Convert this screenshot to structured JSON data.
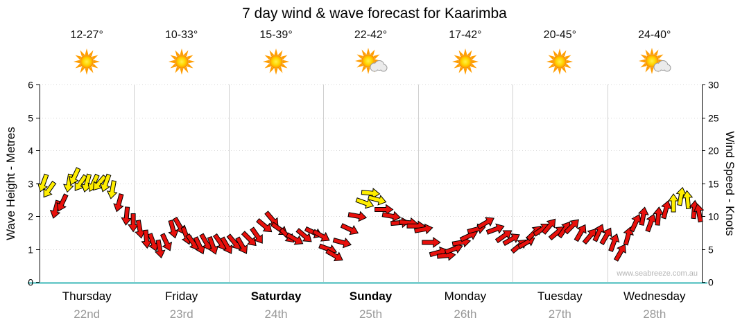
{
  "title": "7 day wind & wave forecast for Kaarimba",
  "watermark": "www.seabreeze.com.au",
  "axes": {
    "left_label": "Wave Height - Metres",
    "right_label": "Wind Speed - Knots",
    "left_ticks": [
      0,
      1,
      2,
      3,
      4,
      5,
      6
    ],
    "right_ticks": [
      0,
      5,
      10,
      15,
      20,
      25,
      30
    ],
    "left_range": [
      0,
      6
    ],
    "right_range": [
      0,
      30
    ]
  },
  "days": [
    {
      "name": "Thursday",
      "date": "22nd",
      "temp": "12-27°",
      "icon": "sun",
      "bold": false
    },
    {
      "name": "Friday",
      "date": "23rd",
      "temp": "10-33°",
      "icon": "sun",
      "bold": false
    },
    {
      "name": "Saturday",
      "date": "24th",
      "temp": "15-39°",
      "icon": "sun",
      "bold": true
    },
    {
      "name": "Sunday",
      "date": "25th",
      "temp": "22-42°",
      "icon": "sun-cloud",
      "bold": true
    },
    {
      "name": "Monday",
      "date": "26th",
      "temp": "17-42°",
      "icon": "sun",
      "bold": false
    },
    {
      "name": "Tuesday",
      "date": "27th",
      "temp": "20-45°",
      "icon": "sun",
      "bold": false
    },
    {
      "name": "Wednesday",
      "date": "28th",
      "temp": "24-40°",
      "icon": "sun-cloud",
      "bold": false
    }
  ],
  "chart_data": {
    "type": "scatter",
    "marker": "wind-arrow",
    "title": "7 day wind & wave forecast for Kaarimba",
    "xlabel": "",
    "ylabel_left": "Wave Height - Metres",
    "ylabel_right": "Wind Speed - Knots",
    "x_unit": "days",
    "x_range": [
      0,
      7
    ],
    "x_tick_labels": [
      "Thursday",
      "Friday",
      "Saturday",
      "Sunday",
      "Monday",
      "Tuesday",
      "Wednesday"
    ],
    "y_axis": "knots",
    "y_range": [
      0,
      30
    ],
    "grid": true,
    "colors": {
      "strong": "#ffee00",
      "light": "#e8100c",
      "x_axis_line": "#35b6b6"
    },
    "color_legend": {
      "y": "yellow arrow (moderate, ~12+ kt)",
      "r": "red arrow (light, <12 kt)"
    },
    "point_format": [
      "day_offset",
      "knots",
      "direction_deg",
      "color"
    ],
    "points": [
      [
        0.04,
        15,
        200,
        "y"
      ],
      [
        0.1,
        14,
        215,
        "y"
      ],
      [
        0.17,
        11,
        195,
        "r"
      ],
      [
        0.24,
        12,
        205,
        "r"
      ],
      [
        0.31,
        15,
        190,
        "y"
      ],
      [
        0.37,
        16,
        205,
        "y"
      ],
      [
        0.43,
        15,
        215,
        "y"
      ],
      [
        0.5,
        15,
        195,
        "y"
      ],
      [
        0.57,
        15,
        205,
        "y"
      ],
      [
        0.63,
        15,
        220,
        "y"
      ],
      [
        0.7,
        15,
        200,
        "y"
      ],
      [
        0.77,
        14,
        190,
        "y"
      ],
      [
        0.84,
        12,
        195,
        "r"
      ],
      [
        0.92,
        10,
        185,
        "r"
      ],
      [
        0.99,
        9,
        180,
        "r"
      ],
      [
        1.06,
        8,
        170,
        "r"
      ],
      [
        1.13,
        6.5,
        175,
        "r"
      ],
      [
        1.2,
        6,
        160,
        "r"
      ],
      [
        1.27,
        5,
        170,
        "r"
      ],
      [
        1.34,
        6,
        155,
        "r"
      ],
      [
        1.41,
        8,
        165,
        "r"
      ],
      [
        1.48,
        8.5,
        150,
        "r"
      ],
      [
        1.55,
        7,
        160,
        "r"
      ],
      [
        1.62,
        6,
        145,
        "r"
      ],
      [
        1.69,
        5.5,
        155,
        "r"
      ],
      [
        1.76,
        6,
        150,
        "r"
      ],
      [
        1.83,
        5.5,
        160,
        "r"
      ],
      [
        1.91,
        6,
        145,
        "r"
      ],
      [
        1.98,
        5.5,
        150,
        "r"
      ],
      [
        2.06,
        6,
        140,
        "r"
      ],
      [
        2.14,
        5.5,
        150,
        "r"
      ],
      [
        2.22,
        6.5,
        135,
        "r"
      ],
      [
        2.3,
        7,
        145,
        "r"
      ],
      [
        2.38,
        8.5,
        130,
        "r"
      ],
      [
        2.46,
        9.5,
        140,
        "r"
      ],
      [
        2.54,
        8,
        125,
        "r"
      ],
      [
        2.62,
        7,
        135,
        "r"
      ],
      [
        2.7,
        6.5,
        120,
        "r"
      ],
      [
        2.8,
        7,
        130,
        "r"
      ],
      [
        2.9,
        7.5,
        115,
        "r"
      ],
      [
        2.98,
        7,
        120,
        "r"
      ],
      [
        3.05,
        5,
        110,
        "r"
      ],
      [
        3.12,
        4,
        120,
        "r"
      ],
      [
        3.2,
        6,
        105,
        "r"
      ],
      [
        3.28,
        8,
        115,
        "r"
      ],
      [
        3.36,
        10,
        100,
        "r"
      ],
      [
        3.44,
        12,
        110,
        "y"
      ],
      [
        3.5,
        13.5,
        95,
        "y"
      ],
      [
        3.57,
        12.5,
        105,
        "y"
      ],
      [
        3.64,
        11,
        90,
        "r"
      ],
      [
        3.72,
        10,
        100,
        "r"
      ],
      [
        3.81,
        9,
        85,
        "r"
      ],
      [
        3.9,
        9,
        95,
        "r"
      ],
      [
        3.98,
        8.5,
        90,
        "r"
      ],
      [
        4.06,
        8,
        80,
        "r"
      ],
      [
        4.14,
        6,
        90,
        "r"
      ],
      [
        4.22,
        4.5,
        75,
        "r"
      ],
      [
        4.3,
        4,
        85,
        "r"
      ],
      [
        4.38,
        5,
        70,
        "r"
      ],
      [
        4.46,
        6,
        80,
        "r"
      ],
      [
        4.54,
        7,
        65,
        "r"
      ],
      [
        4.62,
        8,
        75,
        "r"
      ],
      [
        4.72,
        9,
        60,
        "r"
      ],
      [
        4.82,
        8,
        70,
        "r"
      ],
      [
        4.91,
        7,
        55,
        "r"
      ],
      [
        4.99,
        6.5,
        60,
        "r"
      ],
      [
        5.07,
        5.5,
        50,
        "r"
      ],
      [
        5.15,
        6,
        60,
        "r"
      ],
      [
        5.23,
        7.5,
        45,
        "r"
      ],
      [
        5.31,
        8,
        55,
        "r"
      ],
      [
        5.39,
        8.5,
        40,
        "r"
      ],
      [
        5.47,
        7.5,
        50,
        "r"
      ],
      [
        5.55,
        8,
        35,
        "r"
      ],
      [
        5.63,
        8.5,
        45,
        "r"
      ],
      [
        5.72,
        7.5,
        30,
        "r"
      ],
      [
        5.82,
        7,
        40,
        "r"
      ],
      [
        5.91,
        7.5,
        25,
        "r"
      ],
      [
        5.99,
        7,
        30,
        "r"
      ],
      [
        6.07,
        6,
        20,
        "r"
      ],
      [
        6.14,
        4.5,
        30,
        "r"
      ],
      [
        6.22,
        7,
        15,
        "r"
      ],
      [
        6.3,
        9,
        25,
        "r"
      ],
      [
        6.38,
        10,
        10,
        "r"
      ],
      [
        6.46,
        9,
        20,
        "r"
      ],
      [
        6.54,
        10,
        5,
        "r"
      ],
      [
        6.62,
        11,
        15,
        "r"
      ],
      [
        6.7,
        12,
        0,
        "y"
      ],
      [
        6.78,
        13,
        10,
        "y"
      ],
      [
        6.85,
        12.5,
        355,
        "y"
      ],
      [
        6.92,
        11,
        5,
        "r"
      ],
      [
        6.97,
        10.5,
        350,
        "r"
      ]
    ]
  }
}
